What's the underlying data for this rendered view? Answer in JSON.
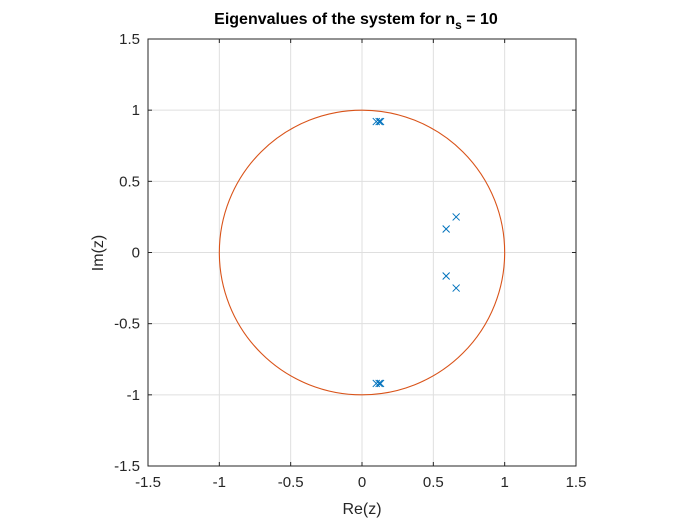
{
  "chart_data": {
    "type": "scatter",
    "title": "Eigenvalues of the system for n",
    "title_subscript": "s",
    "title_suffix": " = 10",
    "xlabel": "Re(z)",
    "ylabel": "Im(z)",
    "xlim": [
      -1.5,
      1.5
    ],
    "ylim": [
      -1.5,
      1.5
    ],
    "xticks": [
      -1.5,
      -1,
      -0.5,
      0,
      0.5,
      1,
      1.5
    ],
    "yticks": [
      -1.5,
      -1,
      -0.5,
      0,
      0.5,
      1,
      1.5
    ],
    "xtick_labels": [
      "-1.5",
      "-1",
      "-0.5",
      "0",
      "0.5",
      "1",
      "1.5"
    ],
    "ytick_labels": [
      "-1.5",
      "-1",
      "-0.5",
      "0",
      "0.5",
      "1",
      "1.5"
    ],
    "grid": true,
    "series": [
      {
        "marker": "x",
        "color": "#0072BD",
        "points": [
          {
            "x": 0.1,
            "y": 0.92
          },
          {
            "x": 0.12,
            "y": 0.92
          },
          {
            "x": 0.13,
            "y": 0.92
          },
          {
            "x": 0.1,
            "y": -0.92
          },
          {
            "x": 0.12,
            "y": -0.92
          },
          {
            "x": 0.13,
            "y": -0.92
          },
          {
            "x": 0.59,
            "y": 0.165
          },
          {
            "x": 0.66,
            "y": 0.25
          },
          {
            "x": 0.59,
            "y": -0.165
          },
          {
            "x": 0.66,
            "y": -0.25
          }
        ]
      },
      {
        "type": "circle",
        "color": "#D95319",
        "center": [
          0,
          0
        ],
        "radius": 1
      }
    ]
  }
}
